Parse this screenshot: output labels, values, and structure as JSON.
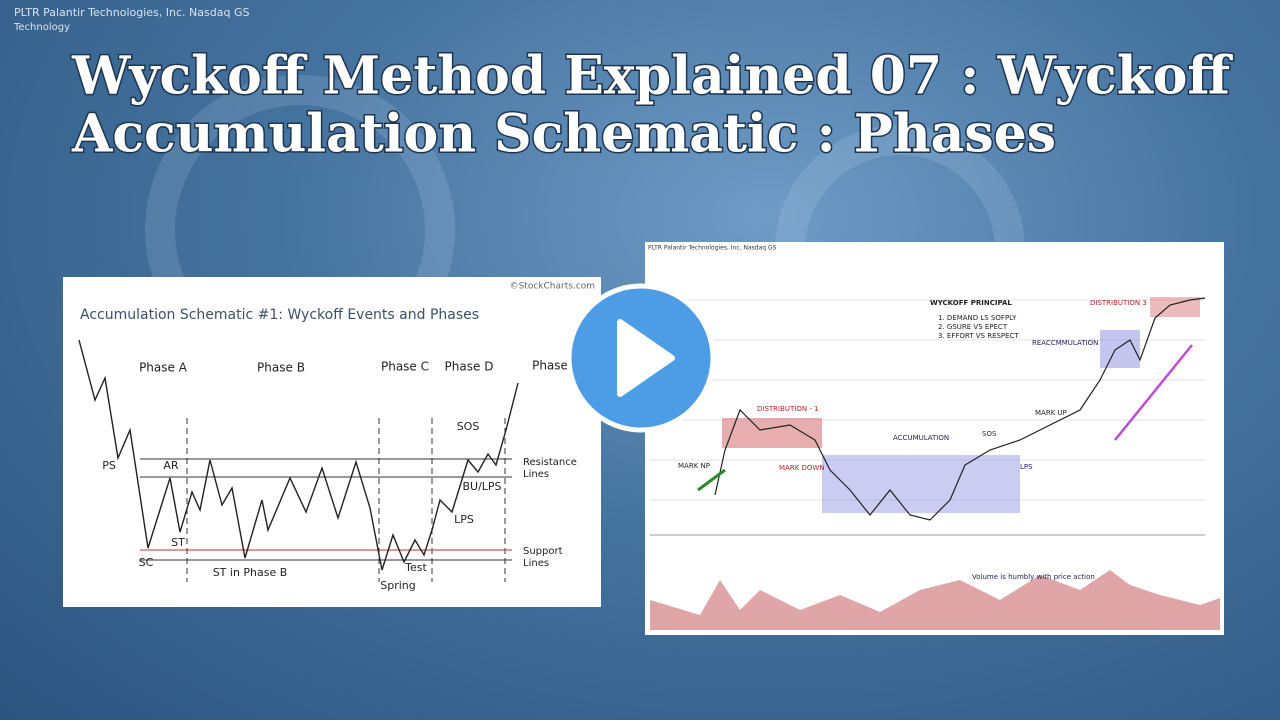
{
  "overlay": {
    "ticker": "PLTR Palantir Technologies, Inc. Nasdaq GS",
    "sector": "Technology"
  },
  "title": {
    "line1": "Wyckoff Method Explained 07 : Wyckoff",
    "line2": "Accumulation Schematic : Phases"
  },
  "left_figure": {
    "credit": "©StockCharts.com",
    "heading": "Accumulation Schematic #1: Wyckoff Events and Phases",
    "phases": [
      "Phase A",
      "Phase B",
      "Phase C",
      "Phase D",
      "Phase"
    ],
    "events": {
      "ps": "PS",
      "ar": "AR",
      "sc": "SC",
      "st": "ST",
      "st_b": "ST in Phase B",
      "spring": "Spring",
      "test": "Test",
      "sos": "SOS",
      "bu_lps": "BU/LPS",
      "lps": "LPS"
    },
    "lines": {
      "resistance": "Resistance\nLines",
      "support": "Support\nLines"
    }
  },
  "right_figure": {
    "header": "PLTR Palantir Technologies, Inc. Nasdaq GS",
    "principal_title": "WYCKOFF PRINCIPAL",
    "principles": [
      "1. DEMAND LS SOFPLY",
      "2. GSURE VS EPECT",
      "3. EFFORT VS RESPECT"
    ],
    "labels": {
      "dist1": "DISTRIBUTION - 1",
      "dist3": "DISTRIBUTION 3",
      "accum": "ACCUMULATION",
      "reaccum": "REACCMMULATION",
      "markup": "MARK UP",
      "markdown": "MARK DOWN",
      "markup2": "MARK NP",
      "sos": "SOS",
      "lps": "LPS",
      "volume_note": "Volume is humbly with price action"
    }
  }
}
